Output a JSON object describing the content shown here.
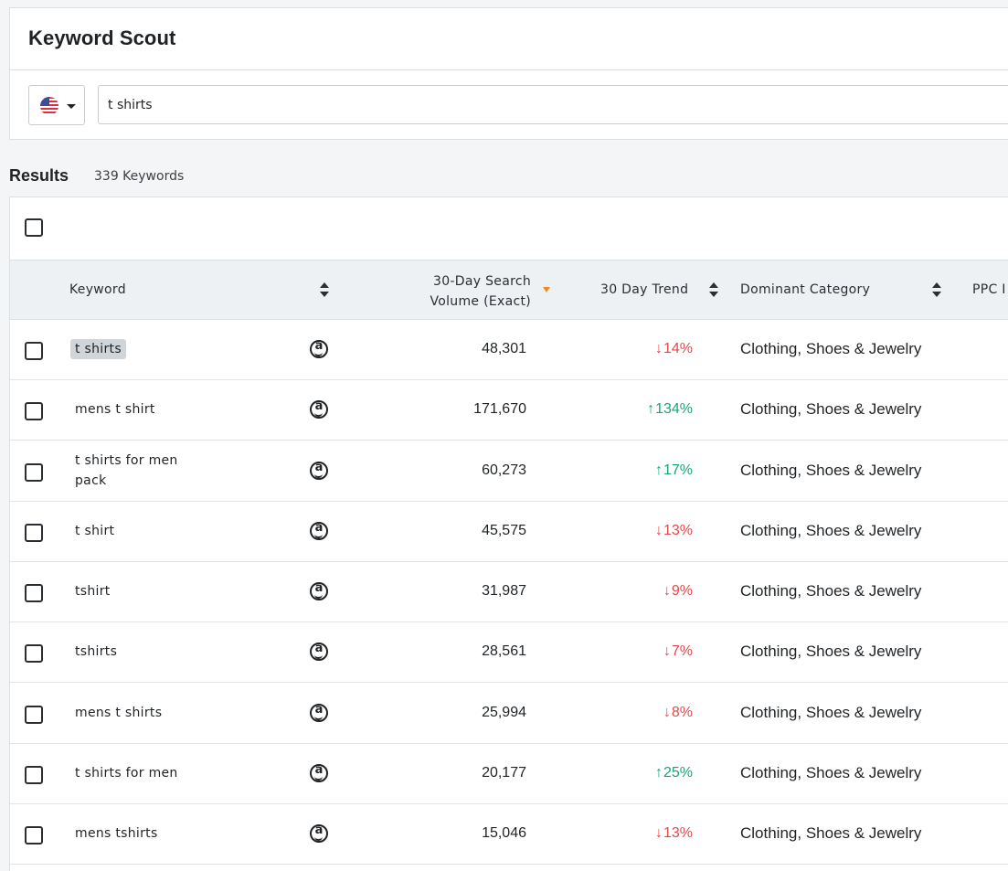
{
  "header": {
    "title": "Keyword Scout",
    "country_icon": "us-flag-icon",
    "search_value": "t shirts"
  },
  "results": {
    "title": "Results",
    "count": "339 Keywords"
  },
  "table": {
    "columns": {
      "keyword": "Keyword",
      "volume": "30-Day Search Volume (Exact)",
      "trend": "30 Day Trend",
      "category": "Dominant Category",
      "ppc": "PPC I"
    },
    "colors": {
      "down": "#e5484d",
      "up": "#17a673",
      "sort_active": "#f08a24"
    },
    "rows": [
      {
        "keyword": "t shirts",
        "highlighted": true,
        "volume": "48,301",
        "trend_dir": "down",
        "arrow": "↓",
        "trend": "14%",
        "category": "Clothing, Shoes & Jewelry"
      },
      {
        "keyword": "mens t shirt",
        "volume": "171,670",
        "trend_dir": "up",
        "arrow": "↑",
        "trend": "134%",
        "category": "Clothing, Shoes & Jewelry"
      },
      {
        "keyword": "t shirts for men pack",
        "volume": "60,273",
        "trend_dir": "up",
        "arrow": "↑",
        "trend": "17%",
        "category": "Clothing, Shoes & Jewelry"
      },
      {
        "keyword": "t shirt",
        "volume": "45,575",
        "trend_dir": "down",
        "arrow": "↓",
        "trend": "13%",
        "category": "Clothing, Shoes & Jewelry"
      },
      {
        "keyword": "tshirt",
        "volume": "31,987",
        "trend_dir": "down",
        "arrow": "↓",
        "trend": "9%",
        "category": "Clothing, Shoes & Jewelry"
      },
      {
        "keyword": "tshirts",
        "volume": "28,561",
        "trend_dir": "down",
        "arrow": "↓",
        "trend": "7%",
        "category": "Clothing, Shoes & Jewelry"
      },
      {
        "keyword": "mens t shirts",
        "volume": "25,994",
        "trend_dir": "down",
        "arrow": "↓",
        "trend": "8%",
        "category": "Clothing, Shoes & Jewelry"
      },
      {
        "keyword": "t shirts for men",
        "volume": "20,177",
        "trend_dir": "up",
        "arrow": "↑",
        "trend": "25%",
        "category": "Clothing, Shoes & Jewelry"
      },
      {
        "keyword": "mens tshirts",
        "volume": "15,046",
        "trend_dir": "down",
        "arrow": "↓",
        "trend": "13%",
        "category": "Clothing, Shoes & Jewelry"
      }
    ]
  }
}
